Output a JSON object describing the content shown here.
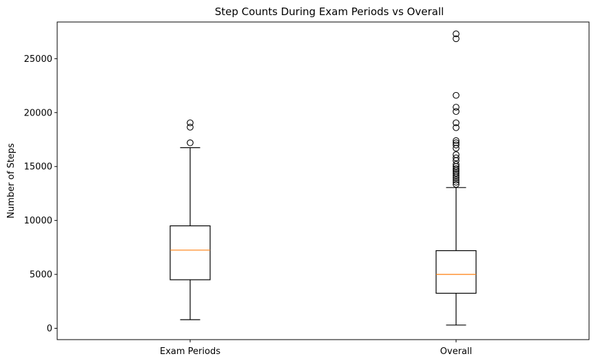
{
  "chart_data": {
    "type": "boxplot",
    "title": "Step Counts During Exam Periods vs Overall",
    "xlabel": "",
    "ylabel": "Number of Steps",
    "categories": [
      "Exam Periods",
      "Overall"
    ],
    "ylim": [
      -1050,
      28400
    ],
    "yticks": [
      0,
      5000,
      10000,
      15000,
      20000,
      25000
    ],
    "grid": false,
    "colors": {
      "box": "#000000",
      "median": "#ff7f0e",
      "background": "#ffffff"
    },
    "boxes": [
      {
        "label": "Exam Periods",
        "whisker_low": 800,
        "q1": 4500,
        "median": 7250,
        "q3": 9500,
        "whisker_high": 16750,
        "fliers": [
          17200,
          18650,
          19050
        ]
      },
      {
        "label": "Overall",
        "whisker_low": 300,
        "q1": 3250,
        "median": 5000,
        "q3": 7200,
        "whisker_high": 13050,
        "fliers": [
          13350,
          13550,
          13750,
          13950,
          14150,
          14350,
          14500,
          14650,
          14800,
          15000,
          15200,
          15550,
          15800,
          16100,
          16700,
          17000,
          17200,
          17400,
          18600,
          19050,
          20100,
          20500,
          21600,
          26850,
          27300
        ]
      }
    ]
  }
}
